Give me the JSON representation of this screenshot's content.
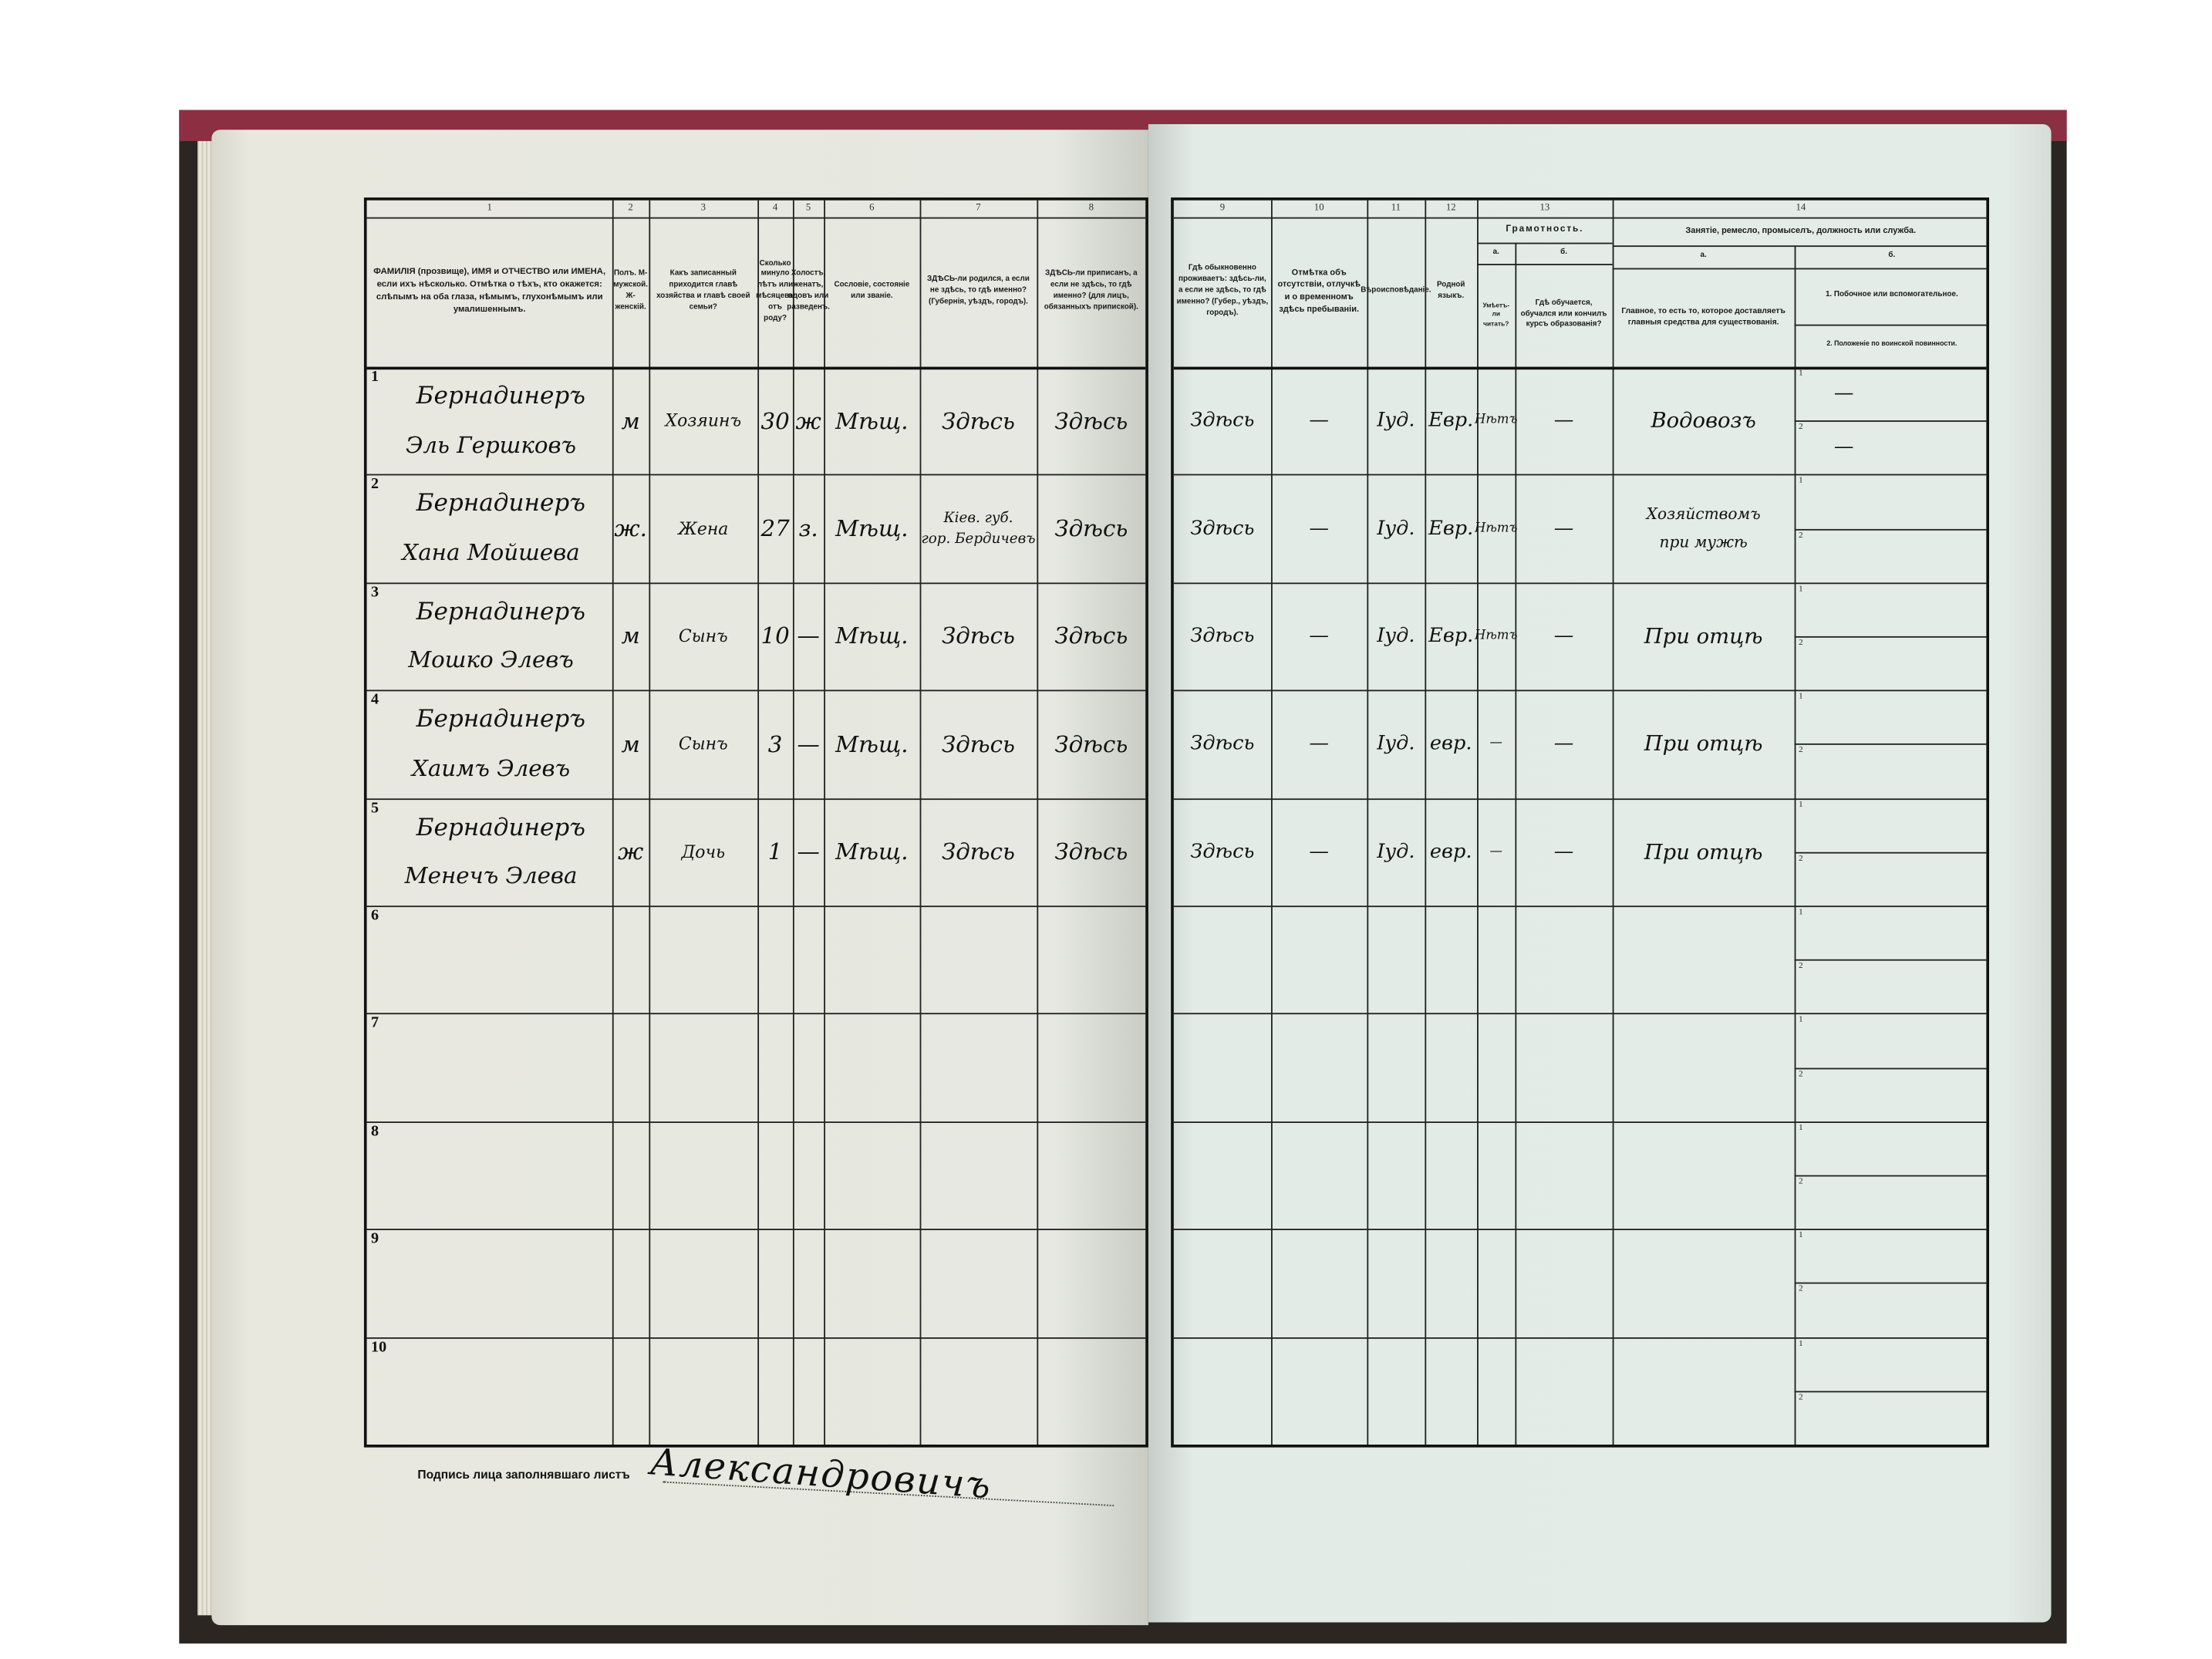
{
  "left_header": {
    "col_numbers": [
      "1",
      "2",
      "3",
      "4",
      "5",
      "6",
      "7",
      "8"
    ],
    "col1": "ФАМИЛІЯ (прозвище), ИМЯ и ОТЧЕСТВО или ИМЕНА, если ихъ нѣсколько. Отмѣтка о тѣхъ, кто окажется: слѣпымъ на оба глаза, нѣмымъ, глухонѣмымъ или умалишеннымъ.",
    "col2": "Полъ. М-мужской. Ж-женскій.",
    "col3": "Какъ записанный приходится главѣ хозяйства и главѣ своей семьи?",
    "col4": "Сколько минуло лѣтъ или мѣсяцевъ отъ роду?",
    "col5": "Холостъ, женатъ, вдовъ или разведенъ.",
    "col6": "Сословіе, состояніе или званіе.",
    "col7": "ЗДѢСЬ-ли родился, а если не здѣсь, то гдѣ именно? (Губернія, уѣздъ, городъ).",
    "col8": "ЗДѢСЬ-ли приписанъ, а если не здѣсь, то гдѣ именно? (для лицъ, обязанныхъ припиской)."
  },
  "right_header": {
    "col_numbers": [
      "9",
      "10",
      "11",
      "12",
      "13",
      "14"
    ],
    "col9": "Гдѣ обыкновенно проживаетъ: здѣсь-ли, а если не здѣсь, то гдѣ именно? (Губер., уѣздъ, городъ).",
    "col10": "Отмѣтка объ отсутствіи, отлучкѣ и о временномъ здѣсь пребываніи.",
    "col11": "Вѣроисповѣданіе.",
    "col12": "Родной языкъ.",
    "col13_title": "Грамотность.",
    "col13a_label": "а.",
    "col13b_label": "б.",
    "col13a": "Умѣетъ-ли читать?",
    "col13b": "Гдѣ обучается, обучался или кончилъ курсъ образованія?",
    "col14_title": "Занятіе, ремесло, промыселъ, должность или служба.",
    "col14a_label": "а.",
    "col14b_label": "б.",
    "col14a": "Главное, то есть то, которое доставляетъ главныя средства для существованія.",
    "col14b1": "1. Побочное или вспомогательное.",
    "col14b2": "2. Положеніе по воинской повинности."
  },
  "row_numbers": [
    "1",
    "2",
    "3",
    "4",
    "5",
    "6",
    "7",
    "8",
    "9",
    "10"
  ],
  "sub_row_labels": [
    "1",
    "2"
  ],
  "rows": [
    {
      "surname": "Бернадинеръ",
      "given": "Эль Гершковъ",
      "sex": "м",
      "relation": "Хозяинъ",
      "age": "30",
      "marital": "ж",
      "estate": "Мѣщ.",
      "born": "Здѣсь",
      "registered": "Здѣсь",
      "resides": "Здѣсь",
      "absence": "—",
      "religion": "Іуд.",
      "language": "Евр.",
      "reads": "Нѣтъ",
      "education": "—",
      "occupation": "Водовозъ",
      "side1": "—",
      "side2": "—"
    },
    {
      "surname": "Бернадинеръ",
      "given": "Хана Мойшева",
      "sex": "ж.",
      "relation": "Жена",
      "age": "27",
      "marital": "з.",
      "estate": "Мѣщ.",
      "born": "Кіев. губ. / гор. Бердичевъ",
      "registered": "Здѣсь",
      "resides": "Здѣсь",
      "absence": "—",
      "religion": "Іуд.",
      "language": "Евр.",
      "reads": "Нѣтъ",
      "education": "—",
      "occupation": "Хозяйствомъ / при мужѣ",
      "side1": "",
      "side2": ""
    },
    {
      "surname": "Бернадинеръ",
      "given": "Мошко Элевъ",
      "sex": "м",
      "relation": "Сынъ",
      "age": "10",
      "marital": "—",
      "estate": "Мѣщ.",
      "born": "Здѣсь",
      "registered": "Здѣсь",
      "resides": "Здѣсь",
      "absence": "—",
      "religion": "Іуд.",
      "language": "Евр.",
      "reads": "Нѣтъ",
      "education": "—",
      "occupation": "При отцѣ",
      "side1": "",
      "side2": ""
    },
    {
      "surname": "Бернадинеръ",
      "given": "Хаимъ Элевъ",
      "sex": "м",
      "relation": "Сынъ",
      "age": "3",
      "marital": "—",
      "estate": "Мѣщ.",
      "born": "Здѣсь",
      "registered": "Здѣсь",
      "resides": "Здѣсь",
      "absence": "—",
      "religion": "Іуд.",
      "language": "евр.",
      "reads": "—",
      "education": "—",
      "occupation": "При отцѣ",
      "side1": "",
      "side2": ""
    },
    {
      "surname": "Бернадинеръ",
      "given": "Менечъ Элева",
      "sex": "ж",
      "relation": "Дочь",
      "age": "1",
      "marital": "—",
      "estate": "Мѣщ.",
      "born": "Здѣсь",
      "registered": "Здѣсь",
      "resides": "Здѣсь",
      "absence": "—",
      "religion": "Іуд.",
      "language": "евр.",
      "reads": "—",
      "education": "—",
      "occupation": "При отцѣ",
      "side1": "",
      "side2": ""
    }
  ],
  "footer": {
    "signature_label": "Подпись лица заполнявшаго листъ",
    "signature": "Александровичъ"
  }
}
